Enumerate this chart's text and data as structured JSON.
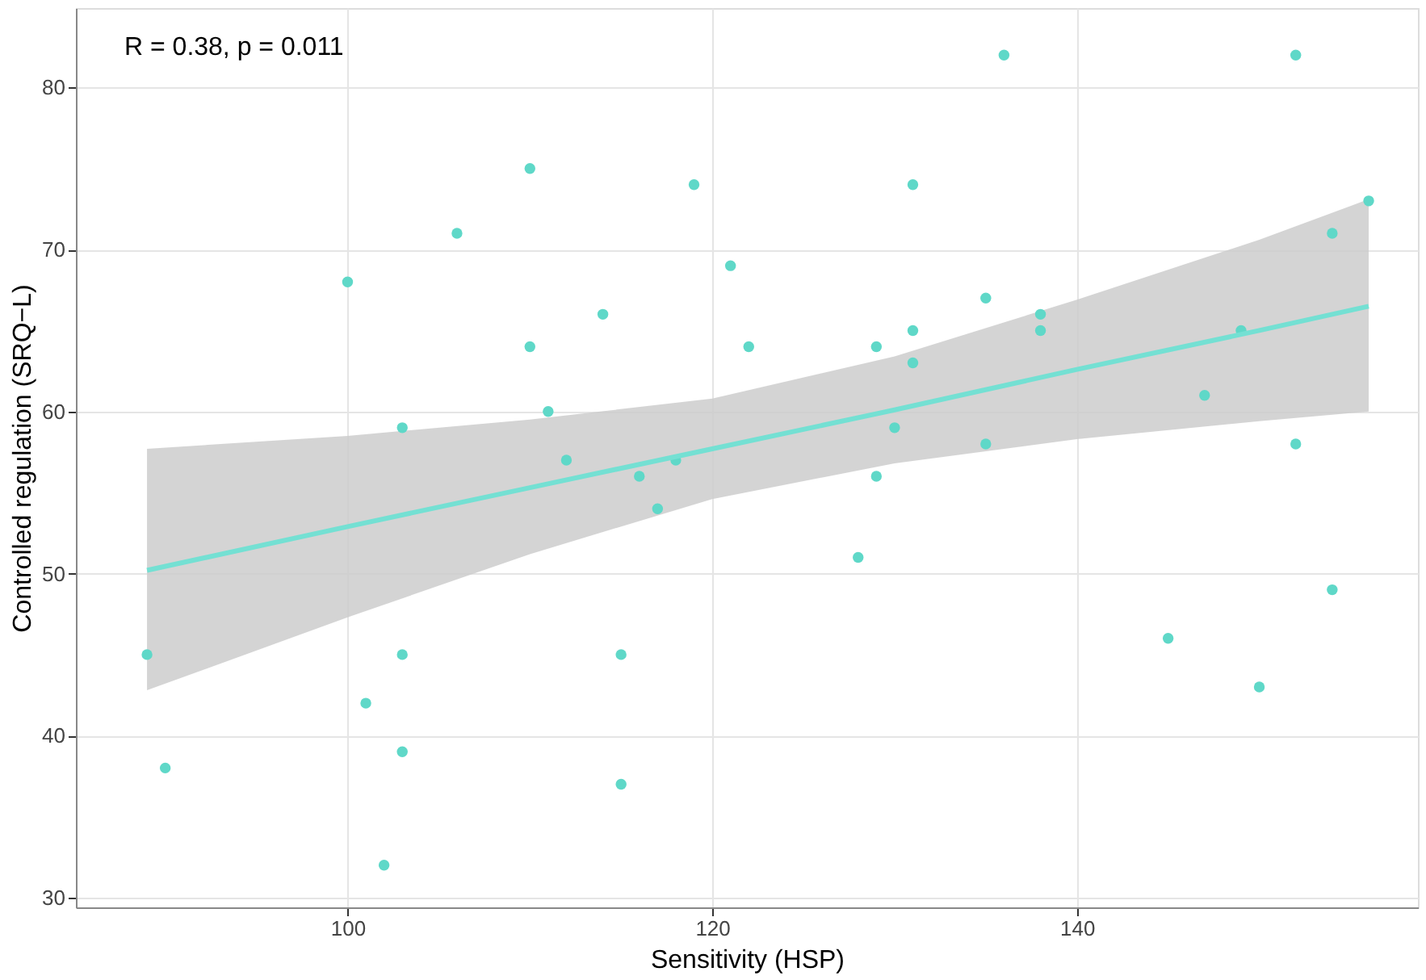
{
  "chart_data": {
    "type": "scatter",
    "xlabel": "Sensitivity (HSP)",
    "ylabel": "Controlled regulation (SRQ−L)",
    "annotations": [
      "R = 0.38, p = 0.011"
    ],
    "xlim": [
      85.1,
      158.7
    ],
    "ylim": [
      29.4,
      84.9
    ],
    "xticks": [
      100,
      120,
      140
    ],
    "yticks": [
      30,
      40,
      50,
      60,
      70,
      80
    ],
    "grid": true,
    "series": [
      {
        "marker": "circle",
        "color": "#5fd8c8",
        "x": [
          89,
          90,
          100,
          101,
          102,
          103,
          103,
          103,
          106,
          110,
          110,
          111,
          112,
          114,
          115,
          115,
          116,
          117,
          118,
          119,
          121,
          122,
          128,
          129,
          129,
          130,
          131,
          131,
          131,
          135,
          135,
          136,
          138,
          138,
          145,
          147,
          149,
          150,
          152,
          152,
          154,
          154,
          156
        ],
        "values": [
          45,
          38,
          68,
          42,
          32,
          59,
          45,
          39,
          71,
          75,
          64,
          60,
          57,
          66,
          45,
          37,
          56,
          54,
          57,
          74,
          69,
          64,
          51,
          64,
          56,
          59,
          74,
          65,
          63,
          67,
          58,
          82,
          66,
          65,
          46,
          61,
          65,
          43,
          82,
          58,
          49,
          71,
          73
        ]
      },
      {
        "type": "line",
        "marker": "none",
        "color": "#74e0d3",
        "x": [
          89,
          100,
          110,
          120,
          130,
          140,
          150,
          156
        ],
        "values": [
          50.2,
          52.9,
          55.3,
          57.7,
          60.1,
          62.6,
          65.0,
          66.5
        ],
        "lower": [
          42.8,
          47.3,
          51.2,
          54.6,
          56.8,
          58.3,
          59.4,
          60.0
        ],
        "upper": [
          57.7,
          58.5,
          59.5,
          60.8,
          63.4,
          66.9,
          70.6,
          73.1
        ]
      }
    ]
  }
}
